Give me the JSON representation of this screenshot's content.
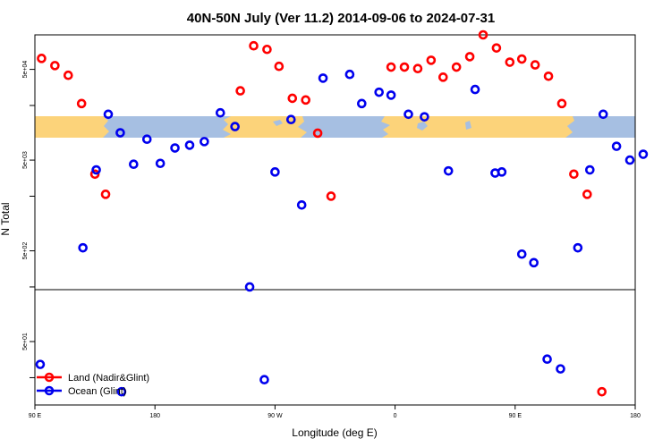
{
  "chart_data": {
    "type": "scatter",
    "title": "40N-50N July (Ver 11.2)   2014-09-06 to 2024-07-31",
    "xlabel": "Longitude (deg E)",
    "ylabel": "N Total",
    "x_ticks": [
      {
        "lon": 90,
        "label": "90 E"
      },
      {
        "lon": 180,
        "label": "180"
      },
      {
        "lon": 270,
        "label": "90 W"
      },
      {
        "lon": 360,
        "label": "0"
      },
      {
        "lon": 450,
        "label": "90 E"
      },
      {
        "lon": 540,
        "label": "180"
      }
    ],
    "y_ticks": [
      {
        "value": 50,
        "label": "5e+01"
      },
      {
        "value": 500,
        "label": "5e+02"
      },
      {
        "value": 5000,
        "label": "5e+03"
      },
      {
        "value": 50000,
        "label": "5e+04"
      }
    ],
    "xlim": [
      90,
      540
    ],
    "y_scale": "log",
    "ylim": [
      10,
      120000
    ],
    "legend": {
      "position": "bottom-left"
    },
    "series": [
      {
        "name": "Land (Nadir&Glint)",
        "color": "#ff0000",
        "points": [
          {
            "x": 95,
            "y": 66000
          },
          {
            "x": 105,
            "y": 55000
          },
          {
            "x": 115,
            "y": 43000
          },
          {
            "x": 125,
            "y": 21000
          },
          {
            "x": 135,
            "y": 3500
          },
          {
            "x": 143,
            "y": 2100
          },
          {
            "x": 244,
            "y": 29000
          },
          {
            "x": 254,
            "y": 91000
          },
          {
            "x": 264,
            "y": 83000
          },
          {
            "x": 273,
            "y": 54000
          },
          {
            "x": 283,
            "y": 24000
          },
          {
            "x": 293,
            "y": 23000
          },
          {
            "x": 302,
            "y": 9900
          },
          {
            "x": 312,
            "y": 2000
          },
          {
            "x": 357,
            "y": 53000
          },
          {
            "x": 367,
            "y": 53000
          },
          {
            "x": 377,
            "y": 51000
          },
          {
            "x": 387,
            "y": 63000
          },
          {
            "x": 396,
            "y": 41000
          },
          {
            "x": 406,
            "y": 53000
          },
          {
            "x": 416,
            "y": 69000
          },
          {
            "x": 426,
            "y": 120000
          },
          {
            "x": 436,
            "y": 86000
          },
          {
            "x": 446,
            "y": 60000
          },
          {
            "x": 455,
            "y": 65000
          },
          {
            "x": 465,
            "y": 56000
          },
          {
            "x": 475,
            "y": 42000
          },
          {
            "x": 485,
            "y": 21000
          },
          {
            "x": 494,
            "y": 3500
          },
          {
            "x": 504,
            "y": 2100
          },
          {
            "x": 515,
            "y": 14
          }
        ]
      },
      {
        "name": "Ocean (Glint)",
        "color": "#0000ee",
        "points": [
          {
            "x": 94,
            "y": 28
          },
          {
            "x": 126,
            "y": 540
          },
          {
            "x": 136,
            "y": 3900
          },
          {
            "x": 145,
            "y": 16000
          },
          {
            "x": 154,
            "y": 10000
          },
          {
            "x": 155,
            "y": 14
          },
          {
            "x": 164,
            "y": 4500
          },
          {
            "x": 174,
            "y": 8500
          },
          {
            "x": 184,
            "y": 4600
          },
          {
            "x": 195,
            "y": 6800
          },
          {
            "x": 206,
            "y": 7300
          },
          {
            "x": 217,
            "y": 8000
          },
          {
            "x": 229,
            "y": 16600
          },
          {
            "x": 240,
            "y": 11700
          },
          {
            "x": 251,
            "y": 200
          },
          {
            "x": 262,
            "y": 19
          },
          {
            "x": 270,
            "y": 3700
          },
          {
            "x": 282,
            "y": 14000
          },
          {
            "x": 290,
            "y": 1600
          },
          {
            "x": 306,
            "y": 40000
          },
          {
            "x": 326,
            "y": 44000
          },
          {
            "x": 335,
            "y": 21000
          },
          {
            "x": 348,
            "y": 28000
          },
          {
            "x": 357,
            "y": 26000
          },
          {
            "x": 370,
            "y": 16000
          },
          {
            "x": 382,
            "y": 15000
          },
          {
            "x": 400,
            "y": 3800
          },
          {
            "x": 420,
            "y": 30000
          },
          {
            "x": 435,
            "y": 3600
          },
          {
            "x": 440,
            "y": 3700
          },
          {
            "x": 455,
            "y": 460
          },
          {
            "x": 464,
            "y": 370
          },
          {
            "x": 474,
            "y": 32
          },
          {
            "x": 484,
            "y": 25
          },
          {
            "x": 497,
            "y": 540
          },
          {
            "x": 506,
            "y": 3900
          },
          {
            "x": 516,
            "y": 16000
          },
          {
            "x": 526,
            "y": 7100
          },
          {
            "x": 536,
            "y": 5000
          },
          {
            "x": 546,
            "y": 5800
          }
        ]
      }
    ]
  }
}
